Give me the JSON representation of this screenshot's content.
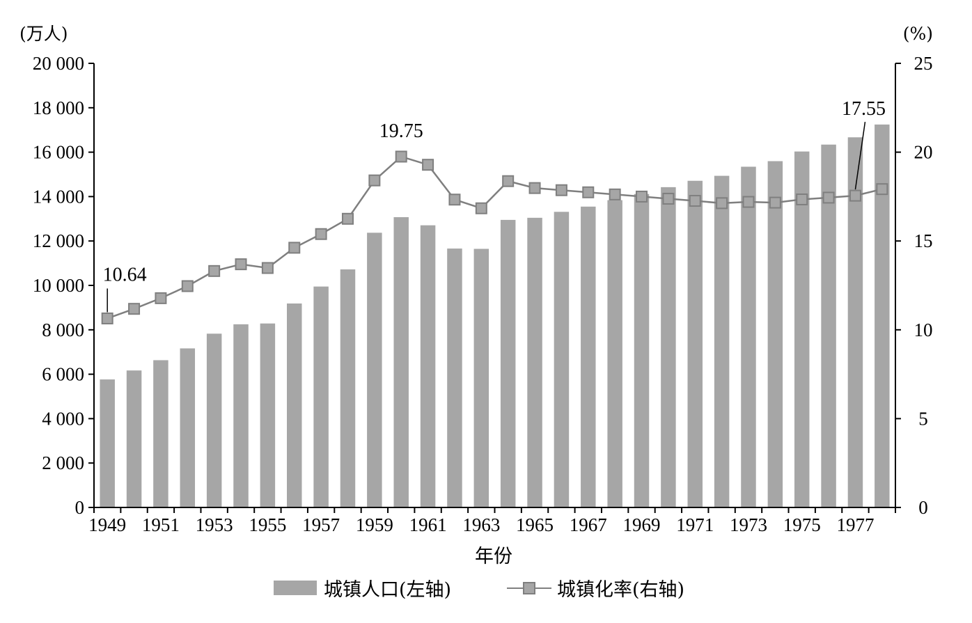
{
  "chart_data": {
    "type": "bar",
    "x": [
      1949,
      1950,
      1951,
      1952,
      1953,
      1954,
      1955,
      1956,
      1957,
      1958,
      1959,
      1960,
      1961,
      1962,
      1963,
      1964,
      1965,
      1966,
      1967,
      1968,
      1969,
      1970,
      1971,
      1972,
      1973,
      1974,
      1975,
      1976,
      1977,
      1978
    ],
    "x_tick_labels": [
      "1949",
      "1951",
      "1953",
      "1955",
      "1957",
      "1959",
      "1961",
      "1963",
      "1965",
      "1967",
      "1969",
      "1971",
      "1973",
      "1975",
      "1977"
    ],
    "xlabel": "年份",
    "y_left": {
      "unit_label": "(万人)",
      "ylim": [
        0,
        20000
      ],
      "ticks": [
        0,
        2000,
        4000,
        6000,
        8000,
        10000,
        12000,
        14000,
        16000,
        18000,
        20000
      ],
      "tick_labels": [
        "0",
        "2 000",
        "4 000",
        "6 000",
        "8 000",
        "10 000",
        "12 000",
        "14 000",
        "16 000",
        "18 000",
        "20 000"
      ]
    },
    "y_right": {
      "unit_label": "(%)",
      "ylim": [
        0,
        25
      ],
      "ticks": [
        0,
        5,
        10,
        15,
        20,
        25
      ],
      "tick_labels": [
        "0",
        "5",
        "10",
        "15",
        "20",
        "25"
      ]
    },
    "series": [
      {
        "name": "城镇人口(左轴)",
        "type": "bar",
        "axis": "left",
        "color": "#a6a6a6",
        "values": [
          5765,
          6169,
          6632,
          7163,
          7826,
          8249,
          8285,
          9185,
          9949,
          10721,
          12371,
          13073,
          12707,
          11659,
          11646,
          12950,
          13045,
          13313,
          13548,
          13838,
          14117,
          14424,
          14711,
          14935,
          15345,
          15595,
          16030,
          16341,
          16669,
          17245
        ]
      },
      {
        "name": "城镇化率(右轴)",
        "type": "line",
        "axis": "right",
        "color": "#7f7f7f",
        "marker_fill": "#a6a6a6",
        "values": [
          10.64,
          11.18,
          11.78,
          12.46,
          13.31,
          13.69,
          13.48,
          14.62,
          15.39,
          16.25,
          18.41,
          19.75,
          19.29,
          17.33,
          16.84,
          18.37,
          17.98,
          17.86,
          17.74,
          17.62,
          17.5,
          17.38,
          17.26,
          17.13,
          17.2,
          17.16,
          17.34,
          17.44,
          17.55,
          17.92
        ]
      }
    ],
    "annotations": [
      {
        "text": "10.64",
        "year": 1949
      },
      {
        "text": "19.75",
        "year": 1960
      },
      {
        "text": "17.55",
        "year": 1977
      }
    ],
    "legend": {
      "position": "bottom"
    },
    "grid": false
  }
}
